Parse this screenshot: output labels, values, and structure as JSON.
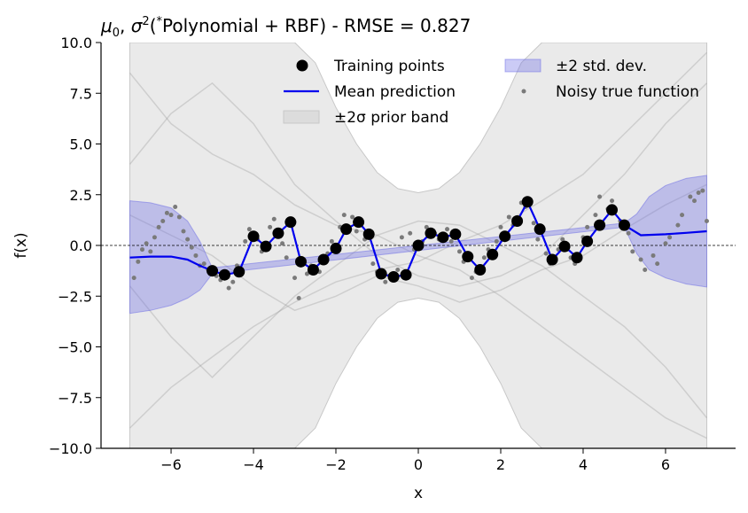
{
  "chart_data": {
    "type": "line",
    "title": "μ0,  σ2(*Polynomial + RBF) - RMSE = 0.827",
    "title_parts": {
      "mu": "μ",
      "mu_sub": "0",
      "sep": ",  ",
      "sigma": "σ",
      "sigma_sup": "2",
      "open": "(",
      "star": "*",
      "rest": "Polynomial + RBF) - RMSE = 0.827"
    },
    "xlabel": "x",
    "ylabel": "f(x)",
    "xlim": [
      -7.7,
      7.7
    ],
    "ylim": [
      -10,
      10
    ],
    "xticks": [
      -6,
      -4,
      -2,
      0,
      2,
      4,
      6
    ],
    "xtick_labels": [
      "−6",
      "−4",
      "−2",
      "0",
      "2",
      "4",
      "6"
    ],
    "yticks": [
      -10,
      -7.5,
      -5,
      -2.5,
      0,
      2.5,
      5,
      7.5,
      10
    ],
    "ytick_labels": [
      "−10.0",
      "−7.5",
      "−5.0",
      "−2.5",
      "0.0",
      "2.5",
      "5.0",
      "7.5",
      "10.0"
    ],
    "grid": false,
    "legend_placement": "top-center",
    "legend": [
      {
        "label": "Training points",
        "kind": "marker"
      },
      {
        "label": "±2 std. dev.",
        "kind": "patch-blue"
      },
      {
        "label": "Mean prediction",
        "kind": "line"
      },
      {
        "label": "Noisy true function",
        "kind": "dot"
      },
      {
        "label": "±2σ prior band",
        "kind": "patch-gray"
      }
    ],
    "colors": {
      "mean": "#0000ee",
      "std_fill": "#6a6ae6",
      "prior_fill": "#dcdcdc",
      "samples": "#9a9a9a",
      "points": "#000000",
      "noisy": "#7a7a7a"
    },
    "training_points": {
      "x": [
        -5.0,
        -4.7,
        -4.35,
        -4.0,
        -3.7,
        -3.4,
        -3.1,
        -2.85,
        -2.55,
        -2.3,
        -2.0,
        -1.75,
        -1.45,
        -1.2,
        -0.9,
        -0.6,
        -0.3,
        0.0,
        0.3,
        0.6,
        0.9,
        1.2,
        1.5,
        1.8,
        2.1,
        2.4,
        2.65,
        2.95,
        3.25,
        3.55,
        3.85,
        4.1,
        4.4,
        4.7,
        5.0
      ],
      "y": [
        -1.25,
        -1.45,
        -1.3,
        0.45,
        -0.05,
        0.6,
        1.15,
        -0.8,
        -1.2,
        -0.7,
        -0.15,
        0.8,
        1.15,
        0.55,
        -1.4,
        -1.55,
        -1.45,
        0.0,
        0.6,
        0.4,
        0.55,
        -0.55,
        -1.2,
        -0.45,
        0.45,
        1.2,
        2.15,
        0.8,
        -0.7,
        -0.05,
        -0.6,
        0.2,
        1.0,
        1.75,
        1.0
      ]
    },
    "mean_prediction": {
      "x": [
        -7.0,
        -6.5,
        -6.0,
        -5.6,
        -5.3,
        -5.0,
        -4.7,
        -4.35,
        -4.0,
        -3.7,
        -3.4,
        -3.1,
        -2.85,
        -2.55,
        -2.3,
        -2.0,
        -1.75,
        -1.45,
        -1.2,
        -0.9,
        -0.6,
        -0.3,
        0.0,
        0.3,
        0.6,
        0.9,
        1.2,
        1.5,
        1.8,
        2.1,
        2.4,
        2.65,
        2.95,
        3.25,
        3.55,
        3.85,
        4.1,
        4.4,
        4.7,
        5.0,
        5.4,
        6.0,
        6.5,
        7.0
      ],
      "y": [
        -0.6,
        -0.55,
        -0.55,
        -0.7,
        -1.0,
        -1.25,
        -1.45,
        -1.3,
        0.45,
        -0.05,
        0.6,
        1.15,
        -0.8,
        -1.2,
        -0.7,
        -0.15,
        0.8,
        1.15,
        0.55,
        -1.4,
        -1.55,
        -1.45,
        0.0,
        0.6,
        0.4,
        0.55,
        -0.55,
        -1.2,
        -0.45,
        0.45,
        1.2,
        2.15,
        0.8,
        -0.7,
        -0.05,
        -0.6,
        0.2,
        1.0,
        1.75,
        1.0,
        0.5,
        0.55,
        0.62,
        0.7
      ]
    },
    "std_band": {
      "x": [
        -7.0,
        -6.5,
        -6.0,
        -5.6,
        -5.3,
        -5.0,
        5.0,
        5.3,
        5.6,
        6.0,
        6.5,
        7.0
      ],
      "upper": [
        2.2,
        2.1,
        1.85,
        1.2,
        0.2,
        -1.1,
        1.1,
        1.55,
        2.4,
        2.95,
        3.3,
        3.45
      ],
      "lower": [
        -3.35,
        -3.2,
        -2.95,
        -2.6,
        -2.2,
        -1.4,
        0.9,
        -0.4,
        -1.2,
        -1.6,
        -1.9,
        -2.05
      ]
    },
    "prior_band": {
      "x": [
        -7.0,
        -6.5,
        -6.0,
        -5.5,
        -5.0,
        -4.5,
        -4.0,
        -3.5,
        -3.0,
        -2.5,
        -2.0,
        -1.5,
        -1.0,
        -0.5,
        0.0,
        0.5,
        1.0,
        1.5,
        2.0,
        2.5,
        3.0,
        3.5,
        4.0,
        4.5,
        5.0,
        5.5,
        6.0,
        6.5,
        7.0
      ],
      "upper": [
        10,
        10,
        10,
        10,
        10,
        10,
        10,
        10,
        10,
        9.0,
        6.8,
        5.0,
        3.6,
        2.8,
        2.6,
        2.8,
        3.6,
        5.0,
        6.8,
        9.0,
        10,
        10,
        10,
        10,
        10,
        10,
        10,
        10,
        10
      ],
      "lower": [
        -10,
        -10,
        -10,
        -10,
        -10,
        -10,
        -10,
        -10,
        -10,
        -9.0,
        -6.8,
        -5.0,
        -3.6,
        -2.8,
        -2.6,
        -2.8,
        -3.6,
        -5.0,
        -6.8,
        -9.0,
        -10,
        -10,
        -10,
        -10,
        -10,
        -10,
        -10,
        -10,
        -10
      ]
    },
    "prior_samples": [
      {
        "x": [
          -7.0,
          -6.0,
          -5.0,
          -4.0,
          -3.0,
          -2.0,
          -1.0,
          0.0,
          1.0,
          2.0,
          3.0,
          4.0,
          5.0,
          6.0,
          7.0
        ],
        "y": [
          8.5,
          6.0,
          4.5,
          3.5,
          2.0,
          1.0,
          0.5,
          -0.5,
          -1.2,
          -2.5,
          -4.0,
          -5.5,
          -7.0,
          -8.5,
          -9.5
        ]
      },
      {
        "x": [
          -7.0,
          -6.0,
          -5.0,
          -4.0,
          -3.0,
          -2.0,
          -1.0,
          0.0,
          1.0,
          2.0,
          3.0,
          4.0,
          5.0,
          6.0,
          7.0
        ],
        "y": [
          -9.0,
          -7.0,
          -5.5,
          -4.0,
          -2.8,
          -1.8,
          -1.2,
          -0.8,
          0.2,
          1.0,
          2.2,
          3.5,
          5.5,
          7.5,
          9.5
        ]
      },
      {
        "x": [
          -7.0,
          -6.0,
          -5.0,
          -4.0,
          -3.0,
          -2.0,
          -1.0,
          0.0,
          1.0,
          2.0,
          3.0,
          4.0,
          5.0,
          6.0,
          7.0
        ],
        "y": [
          4.0,
          6.5,
          8.0,
          6.0,
          3.0,
          1.2,
          -0.5,
          -1.5,
          -2.0,
          -1.5,
          -0.5,
          1.5,
          3.5,
          6.0,
          8.0
        ]
      },
      {
        "x": [
          -7.0,
          -6.0,
          -5.0,
          -4.0,
          -3.0,
          -2.0,
          -1.0,
          0.0,
          1.0,
          2.0,
          3.0,
          4.0,
          5.0,
          6.0,
          7.0
        ],
        "y": [
          -2.0,
          -4.5,
          -6.5,
          -4.5,
          -2.5,
          -1.0,
          0.5,
          1.2,
          1.0,
          0.0,
          -1.0,
          -2.5,
          -4.0,
          -6.0,
          -8.5
        ]
      },
      {
        "x": [
          -7.0,
          -6.0,
          -5.0,
          -4.0,
          -3.0,
          -2.0,
          -1.0,
          0.0,
          1.0,
          2.0,
          3.0,
          4.0,
          5.0,
          6.0,
          7.0
        ],
        "y": [
          1.5,
          0.5,
          -0.5,
          -2.0,
          -3.2,
          -2.5,
          -1.5,
          -2.0,
          -2.8,
          -2.2,
          -1.2,
          -0.5,
          0.8,
          2.0,
          3.0
        ]
      }
    ],
    "noisy_true_function": {
      "x": [
        -6.9,
        -6.8,
        -6.7,
        -6.6,
        -6.5,
        -6.4,
        -6.3,
        -6.2,
        -6.1,
        -6.0,
        -5.9,
        -5.8,
        -5.7,
        -5.6,
        -5.5,
        -5.4,
        -5.3,
        -5.2,
        -5.1,
        -4.9,
        -4.8,
        -4.6,
        -4.5,
        -4.4,
        -4.2,
        -4.1,
        -3.9,
        -3.8,
        -3.6,
        -3.5,
        -3.3,
        -3.2,
        -3.0,
        -2.9,
        -2.7,
        -2.6,
        -2.4,
        -2.2,
        -2.1,
        -1.9,
        -1.8,
        -1.6,
        -1.5,
        -1.3,
        -1.1,
        -1.0,
        -0.8,
        -0.7,
        -0.5,
        -0.4,
        -0.2,
        -0.1,
        0.1,
        0.2,
        0.4,
        0.5,
        0.7,
        0.8,
        1.0,
        1.1,
        1.3,
        1.4,
        1.6,
        1.7,
        1.9,
        2.0,
        2.2,
        2.3,
        2.5,
        2.6,
        2.8,
        2.9,
        3.1,
        3.2,
        3.4,
        3.5,
        3.7,
        3.8,
        4.0,
        4.1,
        4.3,
        4.4,
        4.6,
        4.7,
        4.9,
        5.1,
        5.2,
        5.4,
        5.5,
        5.7,
        5.8,
        6.0,
        6.1,
        6.3,
        6.4,
        6.6,
        6.7,
        6.8,
        6.9,
        7.0
      ],
      "y": [
        -1.6,
        -0.8,
        -0.2,
        0.1,
        -0.3,
        0.4,
        0.9,
        1.2,
        1.6,
        1.5,
        1.9,
        1.4,
        0.7,
        0.3,
        -0.1,
        -0.5,
        -1.0,
        -0.9,
        -1.2,
        -1.5,
        -1.7,
        -2.1,
        -1.8,
        -1.0,
        0.2,
        0.8,
        0.3,
        -0.3,
        0.9,
        1.3,
        0.1,
        -0.6,
        -1.6,
        -2.6,
        -1.4,
        -1.0,
        -1.3,
        -0.4,
        0.2,
        0.9,
        1.5,
        1.4,
        0.7,
        0.3,
        -0.9,
        -1.3,
        -1.8,
        -1.5,
        -1.2,
        0.4,
        0.6,
        -0.2,
        0.2,
        0.9,
        0.6,
        0.3,
        0.8,
        0.2,
        -0.3,
        -0.8,
        -1.6,
        -1.3,
        -0.6,
        -0.2,
        0.2,
        0.9,
        1.4,
        1.0,
        2.1,
        1.9,
        1.1,
        0.3,
        -0.4,
        -0.9,
        -0.2,
        0.3,
        -0.6,
        -0.9,
        0.4,
        0.9,
        1.5,
        2.4,
        1.8,
        2.2,
        1.2,
        0.6,
        -0.3,
        -0.7,
        -1.2,
        -0.5,
        -0.9,
        0.1,
        0.4,
        1.0,
        1.5,
        2.4,
        2.2,
        2.6,
        2.7,
        1.2
      ]
    }
  }
}
